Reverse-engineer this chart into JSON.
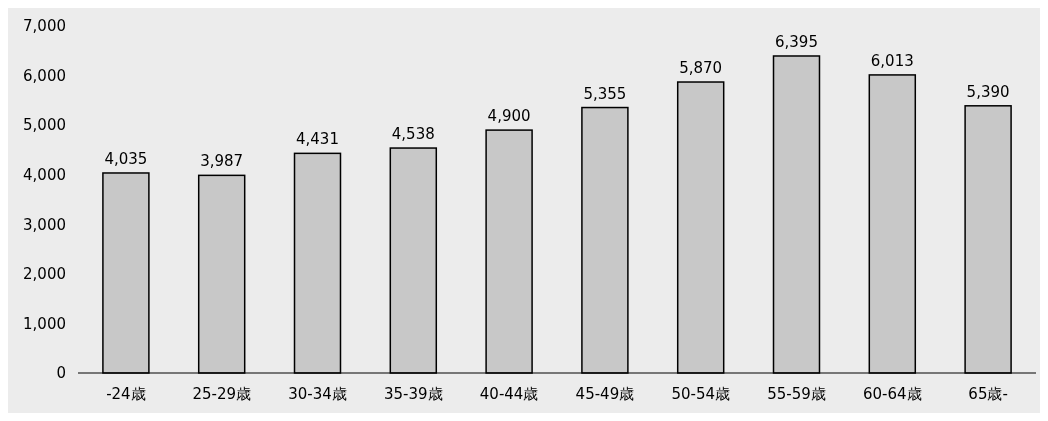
{
  "chart_data": {
    "type": "bar",
    "categories": [
      "-24歳",
      "25-29歳",
      "30-34歳",
      "35-39歳",
      "40-44歳",
      "45-49歳",
      "50-54歳",
      "55-59歳",
      "60-64歳",
      "65歳-"
    ],
    "values": [
      4035,
      3987,
      4431,
      4538,
      4900,
      5355,
      5870,
      6395,
      6013,
      5390
    ],
    "color": "#c8c8c8",
    "data_labels": true,
    "value_labels": [
      "4,035",
      "3,987",
      "4,431",
      "4,538",
      "4,900",
      "5,355",
      "5,870",
      "6,395",
      "6,013",
      "5,390"
    ],
    "ylim": [
      0,
      7000
    ],
    "yticks": [
      0,
      {
        "value": 1000,
        "label": "1,000"
      },
      {
        "value": 2000,
        "label": "2,000"
      },
      {
        "value": 3000,
        "label": "3,000"
      },
      {
        "value": 4000,
        "label": "4,000"
      },
      {
        "value": 5000,
        "label": "5,000"
      },
      {
        "value": 6000,
        "label": "6,000"
      },
      {
        "value": 7000,
        "label": "7,000"
      }
    ],
    "grid": false
  }
}
